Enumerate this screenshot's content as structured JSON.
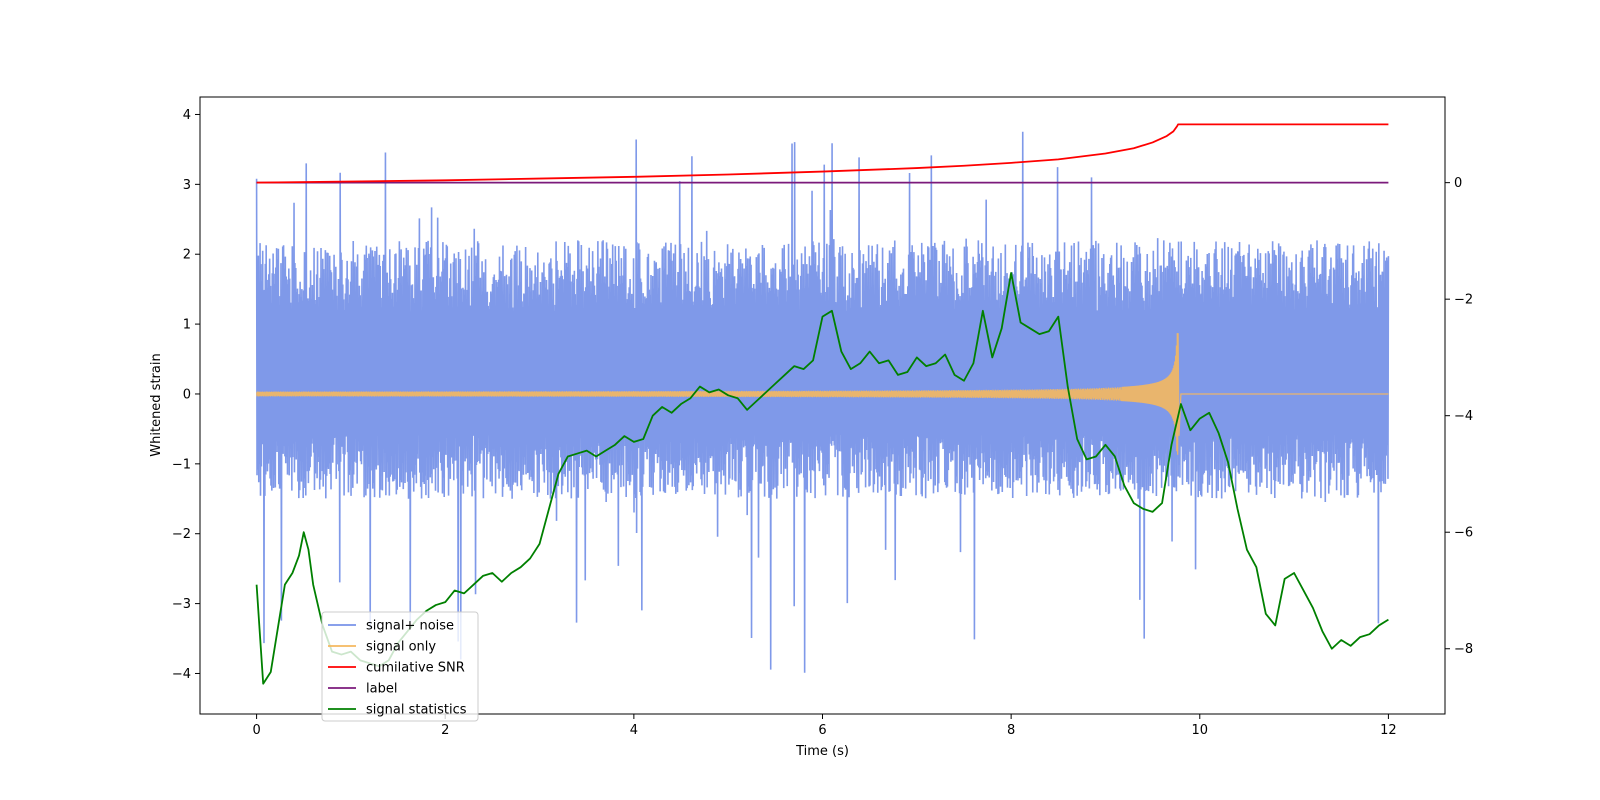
{
  "chart_data": {
    "type": "line",
    "title": "",
    "xlabel": "Time (s)",
    "ylabel": "Whitened strain",
    "y2label": "",
    "xlim": [
      -0.6,
      12.6
    ],
    "ylim": [
      -4.58,
      4.25
    ],
    "y2lim": [
      -9.12,
      1.47
    ],
    "x_ticks": [
      0,
      2,
      4,
      6,
      8,
      10,
      12
    ],
    "y_ticks": [
      4,
      3,
      2,
      1,
      0,
      -1,
      -2,
      -3,
      -4
    ],
    "y2_ticks": [
      0,
      -2,
      -4,
      -6,
      -8
    ],
    "grid": false,
    "legend_position": "lower-left",
    "series": [
      {
        "name": "signal+ noise",
        "axis": "left",
        "color": "#7893e8",
        "kind": "noise-band",
        "x": [
          0,
          12
        ],
        "typical_range": [
          -1.5,
          2.2
        ],
        "peak_range": [
          -4.15,
          3.82
        ]
      },
      {
        "name": "signal only",
        "axis": "left",
        "color": "#f5b85f",
        "kind": "chirp",
        "x_start": 0,
        "x_merger": 9.77,
        "x_end": 12,
        "peak_amplitude": 0.87
      },
      {
        "name": "cumilative SNR",
        "axis": "right",
        "color": "#ff0000",
        "x": [
          0,
          1,
          2,
          3,
          4,
          5,
          6,
          7,
          7.5,
          8,
          8.5,
          9,
          9.3,
          9.5,
          9.65,
          9.72,
          9.76,
          9.77,
          10,
          11,
          12
        ],
        "y": [
          0,
          0.02,
          0.04,
          0.07,
          0.1,
          0.14,
          0.19,
          0.25,
          0.29,
          0.34,
          0.4,
          0.5,
          0.59,
          0.69,
          0.8,
          0.88,
          0.97,
          1.0,
          1.0,
          1.0,
          1.0
        ]
      },
      {
        "name": "label",
        "axis": "right",
        "color": "#7b1a7b",
        "x": [
          0,
          12
        ],
        "y": [
          0,
          0
        ]
      },
      {
        "name": "signal statistics",
        "axis": "right",
        "color": "#008000",
        "x": [
          0,
          0.07,
          0.15,
          0.23,
          0.3,
          0.38,
          0.45,
          0.5,
          0.55,
          0.6,
          0.7,
          0.8,
          0.9,
          1.0,
          1.1,
          1.2,
          1.3,
          1.4,
          1.5,
          1.6,
          1.7,
          1.8,
          1.9,
          2.0,
          2.1,
          2.2,
          2.3,
          2.4,
          2.5,
          2.6,
          2.7,
          2.8,
          2.9,
          3.0,
          3.1,
          3.2,
          3.3,
          3.4,
          3.5,
          3.6,
          3.7,
          3.8,
          3.9,
          4.0,
          4.1,
          4.2,
          4.3,
          4.4,
          4.5,
          4.6,
          4.7,
          4.8,
          4.9,
          5.0,
          5.1,
          5.2,
          5.3,
          5.4,
          5.5,
          5.6,
          5.7,
          5.8,
          5.9,
          6.0,
          6.1,
          6.2,
          6.3,
          6.4,
          6.5,
          6.6,
          6.7,
          6.8,
          6.9,
          7.0,
          7.1,
          7.2,
          7.3,
          7.4,
          7.5,
          7.6,
          7.7,
          7.8,
          7.9,
          8.0,
          8.1,
          8.2,
          8.3,
          8.4,
          8.5,
          8.6,
          8.7,
          8.8,
          8.9,
          9.0,
          9.1,
          9.2,
          9.3,
          9.4,
          9.5,
          9.6,
          9.7,
          9.8,
          9.9,
          10.0,
          10.1,
          10.2,
          10.3,
          10.4,
          10.5,
          10.6,
          10.7,
          10.8,
          10.9,
          11.0,
          11.1,
          11.2,
          11.3,
          11.4,
          11.5,
          11.6,
          11.7,
          11.8,
          11.9,
          12.0
        ],
        "y": [
          -6.9,
          -8.6,
          -8.4,
          -7.6,
          -6.9,
          -6.7,
          -6.4,
          -6.0,
          -6.3,
          -6.9,
          -7.6,
          -8.05,
          -8.1,
          -8.05,
          -8.2,
          -8.25,
          -8.3,
          -8.2,
          -7.9,
          -7.7,
          -7.5,
          -7.35,
          -7.25,
          -7.2,
          -7.0,
          -7.05,
          -6.9,
          -6.75,
          -6.7,
          -6.85,
          -6.7,
          -6.6,
          -6.45,
          -6.2,
          -5.6,
          -5.0,
          -4.7,
          -4.65,
          -4.6,
          -4.7,
          -4.6,
          -4.5,
          -4.35,
          -4.45,
          -4.4,
          -4.0,
          -3.85,
          -3.95,
          -3.8,
          -3.7,
          -3.5,
          -3.6,
          -3.55,
          -3.65,
          -3.7,
          -3.9,
          -3.75,
          -3.6,
          -3.45,
          -3.3,
          -3.15,
          -3.2,
          -3.05,
          -2.3,
          -2.2,
          -2.9,
          -3.2,
          -3.1,
          -2.9,
          -3.1,
          -3.05,
          -3.3,
          -3.25,
          -3.0,
          -3.15,
          -3.1,
          -2.95,
          -3.3,
          -3.4,
          -3.1,
          -2.2,
          -3.0,
          -2.5,
          -1.55,
          -2.4,
          -2.5,
          -2.6,
          -2.55,
          -2.3,
          -3.5,
          -4.4,
          -4.75,
          -4.7,
          -4.5,
          -4.7,
          -5.2,
          -5.5,
          -5.6,
          -5.65,
          -5.5,
          -4.5,
          -3.8,
          -4.25,
          -4.05,
          -3.95,
          -4.3,
          -4.8,
          -5.6,
          -6.3,
          -6.6,
          -7.4,
          -7.6,
          -6.8,
          -6.7,
          -7.0,
          -7.3,
          -7.7,
          -8.0,
          -7.85,
          -7.95,
          -7.8,
          -7.75,
          -7.6,
          -7.5
        ]
      }
    ]
  }
}
